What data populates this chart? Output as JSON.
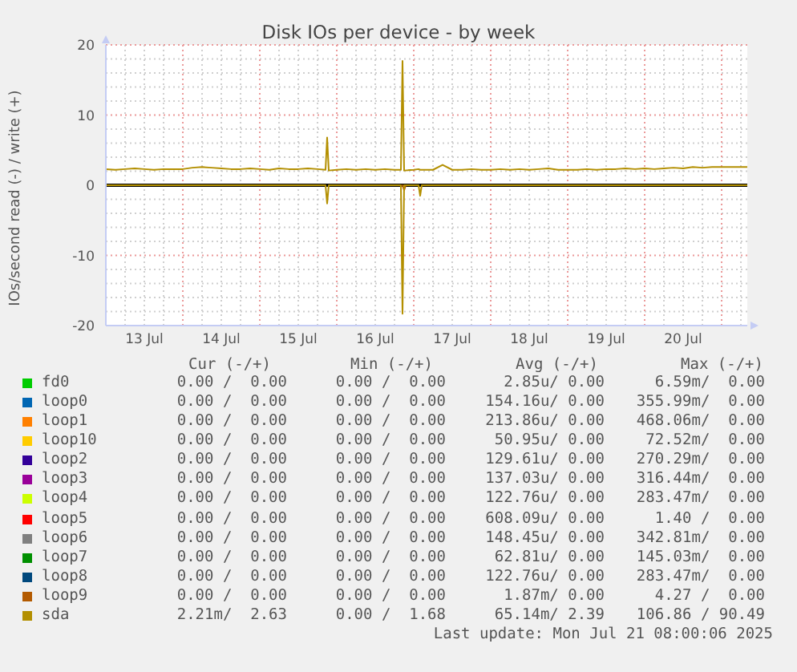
{
  "chart_data": {
    "type": "line",
    "title": "Disk IOs per device - by week",
    "ylabel": "IOs/second read (-) / write (+)",
    "x": [
      "2025-07-13T00:00",
      "2025-07-13T03:00",
      "2025-07-13T06:00",
      "2025-07-13T09:00",
      "2025-07-13T12:00",
      "2025-07-13T15:00",
      "2025-07-13T18:00",
      "2025-07-13T21:00",
      "2025-07-14T00:00",
      "2025-07-14T03:00",
      "2025-07-14T06:00",
      "2025-07-14T09:00",
      "2025-07-14T12:00",
      "2025-07-14T15:00",
      "2025-07-14T18:00",
      "2025-07-14T21:00",
      "2025-07-15T00:00",
      "2025-07-15T03:00",
      "2025-07-15T06:00",
      "2025-07-15T09:00",
      "2025-07-15T12:00",
      "2025-07-15T15:00",
      "2025-07-15T18:00",
      "2025-07-15T20:30",
      "2025-07-15T21:00",
      "2025-07-15T21:30",
      "2025-07-16T00:00",
      "2025-07-16T03:00",
      "2025-07-16T06:00",
      "2025-07-16T09:00",
      "2025-07-16T12:00",
      "2025-07-16T15:00",
      "2025-07-16T18:00",
      "2025-07-16T20:00",
      "2025-07-16T20:30",
      "2025-07-16T21:00",
      "2025-07-17T00:00",
      "2025-07-17T01:30",
      "2025-07-17T02:00",
      "2025-07-17T02:30",
      "2025-07-17T06:00",
      "2025-07-17T09:00",
      "2025-07-17T12:00",
      "2025-07-17T15:00",
      "2025-07-17T18:00",
      "2025-07-17T21:00",
      "2025-07-18T00:00",
      "2025-07-18T03:00",
      "2025-07-18T06:00",
      "2025-07-18T09:00",
      "2025-07-18T12:00",
      "2025-07-18T15:00",
      "2025-07-18T18:00",
      "2025-07-18T21:00",
      "2025-07-19T00:00",
      "2025-07-19T03:00",
      "2025-07-19T06:00",
      "2025-07-19T09:00",
      "2025-07-19T12:00",
      "2025-07-19T15:00",
      "2025-07-19T18:00",
      "2025-07-19T21:00",
      "2025-07-20T00:00",
      "2025-07-20T03:00",
      "2025-07-20T06:00",
      "2025-07-20T09:00",
      "2025-07-20T12:00",
      "2025-07-20T15:00",
      "2025-07-20T18:00",
      "2025-07-20T21:00",
      "2025-07-21T00:00",
      "2025-07-21T03:00",
      "2025-07-21T06:00",
      "2025-07-21T08:00"
    ],
    "series": [
      {
        "name": "fd0",
        "color": "#00cc00",
        "values": [
          null,
          null,
          null,
          null,
          null,
          null,
          null,
          null,
          null,
          null,
          null,
          null,
          null,
          null,
          null,
          null,
          null,
          null,
          null,
          null,
          null,
          null,
          null,
          null,
          null,
          null,
          null,
          null,
          null,
          null,
          null,
          null,
          null,
          null,
          null,
          null,
          null,
          null,
          null,
          null,
          null,
          null,
          null,
          null,
          null,
          null,
          null,
          null,
          null,
          null,
          null,
          null,
          null,
          null,
          null,
          null,
          null,
          null,
          null,
          null,
          null,
          null,
          null,
          null,
          null,
          null,
          null,
          null,
          null,
          null,
          null,
          null,
          null,
          null
        ]
      },
      {
        "name": "loop0",
        "color": "#0066b3",
        "values": [
          null,
          null,
          null,
          null,
          null,
          null,
          null,
          null,
          null,
          null,
          null,
          null,
          null,
          null,
          null,
          null,
          null,
          null,
          null,
          null,
          null,
          null,
          null,
          null,
          null,
          null,
          null,
          null,
          null,
          null,
          null,
          null,
          null,
          null,
          null,
          null,
          null,
          null,
          null,
          null,
          null,
          null,
          null,
          null,
          null,
          null,
          null,
          null,
          null,
          null,
          null,
          null,
          null,
          null,
          null,
          null,
          null,
          null,
          null,
          null,
          null,
          null,
          null,
          null,
          null,
          null,
          null,
          null,
          null,
          null,
          null,
          null,
          null,
          null
        ]
      },
      {
        "name": "loop1",
        "color": "#ff8000",
        "values": [
          null,
          null,
          null,
          null,
          null,
          null,
          null,
          null,
          null,
          null,
          null,
          null,
          null,
          null,
          null,
          null,
          null,
          null,
          null,
          null,
          null,
          null,
          null,
          null,
          null,
          null,
          null,
          null,
          null,
          null,
          null,
          null,
          null,
          null,
          null,
          null,
          null,
          null,
          null,
          null,
          null,
          null,
          null,
          null,
          null,
          null,
          null,
          null,
          null,
          null,
          null,
          null,
          null,
          null,
          null,
          null,
          null,
          null,
          null,
          null,
          null,
          null,
          null,
          null,
          null,
          null,
          null,
          null,
          null,
          null,
          null,
          null,
          null,
          null
        ]
      },
      {
        "name": "loop10",
        "color": "#ffcc00",
        "values": [
          null,
          null,
          null,
          null,
          null,
          null,
          null,
          null,
          null,
          null,
          null,
          null,
          null,
          null,
          null,
          null,
          null,
          null,
          null,
          null,
          null,
          null,
          null,
          null,
          null,
          null,
          null,
          null,
          null,
          null,
          null,
          null,
          null,
          null,
          null,
          null,
          null,
          null,
          null,
          null,
          null,
          null,
          null,
          null,
          null,
          null,
          null,
          null,
          null,
          null,
          null,
          null,
          null,
          null,
          null,
          null,
          null,
          null,
          null,
          null,
          null,
          null,
          null,
          null,
          null,
          null,
          null,
          null,
          null,
          null,
          null,
          null,
          null,
          null
        ]
      },
      {
        "name": "loop2",
        "color": "#330099",
        "values": [
          null,
          null,
          null,
          null,
          null,
          null,
          null,
          null,
          null,
          null,
          null,
          null,
          null,
          null,
          null,
          null,
          null,
          null,
          null,
          null,
          null,
          null,
          null,
          null,
          null,
          null,
          null,
          null,
          null,
          null,
          null,
          null,
          null,
          null,
          null,
          null,
          null,
          null,
          null,
          null,
          null,
          null,
          null,
          null,
          null,
          null,
          null,
          null,
          null,
          null,
          null,
          null,
          null,
          null,
          null,
          null,
          null,
          null,
          null,
          null,
          null,
          null,
          null,
          null,
          null,
          null,
          null,
          null,
          null,
          null,
          null,
          null,
          null,
          null
        ]
      },
      {
        "name": "loop3",
        "color": "#990099",
        "values": [
          null,
          null,
          null,
          null,
          null,
          null,
          null,
          null,
          null,
          null,
          null,
          null,
          null,
          null,
          null,
          null,
          null,
          null,
          null,
          null,
          null,
          null,
          null,
          null,
          null,
          null,
          null,
          null,
          null,
          null,
          null,
          null,
          null,
          null,
          null,
          null,
          null,
          null,
          null,
          null,
          null,
          null,
          null,
          null,
          null,
          null,
          null,
          null,
          null,
          null,
          null,
          null,
          null,
          null,
          null,
          null,
          null,
          null,
          null,
          null,
          null,
          null,
          null,
          null,
          null,
          null,
          null,
          null,
          null,
          null,
          null,
          null,
          null,
          null
        ]
      },
      {
        "name": "loop4",
        "color": "#ccff00",
        "values": [
          null,
          null,
          null,
          null,
          null,
          null,
          null,
          null,
          null,
          null,
          null,
          null,
          null,
          null,
          null,
          null,
          null,
          null,
          null,
          null,
          null,
          null,
          null,
          null,
          null,
          null,
          null,
          null,
          null,
          null,
          null,
          null,
          null,
          null,
          null,
          null,
          null,
          null,
          null,
          null,
          null,
          null,
          null,
          null,
          null,
          null,
          null,
          null,
          null,
          null,
          null,
          null,
          null,
          null,
          null,
          null,
          null,
          null,
          null,
          null,
          null,
          null,
          null,
          null,
          null,
          null,
          null,
          null,
          null,
          null,
          null,
          null,
          null,
          null
        ]
      },
      {
        "name": "loop5",
        "color": "#ff0000",
        "values": [
          null,
          null,
          null,
          null,
          null,
          null,
          null,
          null,
          null,
          null,
          null,
          null,
          null,
          null,
          null,
          null,
          null,
          null,
          null,
          null,
          null,
          null,
          null,
          null,
          null,
          null,
          null,
          null,
          null,
          null,
          null,
          null,
          null,
          null,
          null,
          null,
          null,
          null,
          null,
          null,
          null,
          null,
          null,
          null,
          null,
          null,
          null,
          null,
          null,
          null,
          null,
          null,
          null,
          null,
          null,
          null,
          null,
          null,
          null,
          null,
          null,
          null,
          null,
          null,
          null,
          null,
          null,
          null,
          null,
          null,
          null,
          null,
          null,
          null
        ]
      },
      {
        "name": "loop6",
        "color": "#808080",
        "values": [
          null,
          null,
          null,
          null,
          null,
          null,
          null,
          null,
          null,
          null,
          null,
          null,
          null,
          null,
          null,
          null,
          null,
          null,
          null,
          null,
          null,
          null,
          null,
          null,
          null,
          null,
          null,
          null,
          null,
          null,
          null,
          null,
          null,
          null,
          null,
          null,
          null,
          null,
          null,
          null,
          null,
          null,
          null,
          null,
          null,
          null,
          null,
          null,
          null,
          null,
          null,
          null,
          null,
          null,
          null,
          null,
          null,
          null,
          null,
          null,
          null,
          null,
          null,
          null,
          null,
          null,
          null,
          null,
          null,
          null,
          null,
          null,
          null,
          null
        ]
      },
      {
        "name": "loop7",
        "color": "#008f00",
        "values": [
          null,
          null,
          null,
          null,
          null,
          null,
          null,
          null,
          null,
          null,
          null,
          null,
          null,
          null,
          null,
          null,
          null,
          null,
          null,
          null,
          null,
          null,
          null,
          null,
          null,
          null,
          null,
          null,
          null,
          null,
          null,
          null,
          null,
          null,
          null,
          null,
          null,
          null,
          null,
          null,
          null,
          null,
          null,
          null,
          null,
          null,
          null,
          null,
          null,
          null,
          null,
          null,
          null,
          null,
          null,
          null,
          null,
          null,
          null,
          null,
          null,
          null,
          null,
          null,
          null,
          null,
          null,
          null,
          null,
          null,
          null,
          null,
          null,
          null
        ]
      },
      {
        "name": "loop8",
        "color": "#00487d",
        "values": [
          null,
          null,
          null,
          null,
          null,
          null,
          null,
          null,
          null,
          null,
          null,
          null,
          null,
          null,
          null,
          null,
          null,
          null,
          null,
          null,
          null,
          null,
          null,
          null,
          null,
          null,
          null,
          null,
          null,
          null,
          null,
          null,
          null,
          null,
          null,
          null,
          null,
          null,
          null,
          null,
          null,
          null,
          null,
          null,
          null,
          null,
          null,
          null,
          null,
          null,
          null,
          null,
          null,
          null,
          null,
          null,
          null,
          null,
          null,
          null,
          null,
          null,
          null,
          null,
          null,
          null,
          null,
          null,
          null,
          null,
          null,
          null,
          null,
          null
        ]
      },
      {
        "name": "loop9",
        "color": "#b35a00",
        "x": [
          "2025-07-16T20:30",
          "2025-07-16T21:00",
          "2025-07-16T21:30"
        ],
        "values": [
          0,
          -0.7,
          0
        ]
      },
      {
        "name": "sda",
        "color": "#b38f00",
        "values": [
          2.3,
          2.2,
          2.3,
          2.4,
          2.3,
          2.2,
          2.3,
          2.3,
          2.3,
          2.5,
          2.6,
          2.5,
          2.4,
          2.3,
          2.3,
          2.4,
          2.3,
          2.2,
          2.4,
          2.3,
          2.3,
          2.4,
          2.3,
          2.2,
          6.8,
          2.1,
          2.2,
          2.3,
          2.2,
          2.3,
          2.2,
          2.3,
          2.2,
          2.2,
          17.7,
          2.1,
          2.2,
          2.3,
          2.2,
          2.2,
          2.2,
          2.9,
          2.2,
          2.2,
          2.3,
          2.2,
          2.2,
          2.3,
          2.2,
          2.3,
          2.2,
          2.3,
          2.4,
          2.2,
          2.2,
          2.2,
          2.3,
          2.2,
          2.3,
          2.3,
          2.4,
          2.3,
          2.4,
          2.3,
          2.4,
          2.5,
          2.4,
          2.6,
          2.5,
          2.6,
          2.6,
          2.6,
          2.6,
          2.6
        ]
      },
      {
        "color": "#b38f00",
        "values": [
          0,
          0,
          0,
          0,
          0,
          0,
          0,
          0,
          0,
          0,
          0,
          0,
          0,
          0,
          0,
          0,
          0,
          0,
          0,
          0,
          0,
          0,
          0,
          0,
          -2.6,
          0,
          0,
          0,
          0,
          0,
          0,
          0,
          0,
          0,
          -18.3,
          0,
          0,
          0,
          -1.5,
          0,
          0,
          0,
          0,
          0,
          0,
          0,
          0,
          0,
          0,
          0,
          0,
          0,
          0,
          0,
          0,
          0,
          0,
          0,
          0,
          0,
          0,
          0,
          0,
          0,
          0,
          0,
          0,
          0,
          0,
          0,
          0,
          0,
          0,
          0
        ]
      }
    ],
    "xlim": [
      "2025-07-13T00:00",
      "2025-07-21T08:00"
    ],
    "xticks": [
      {
        "value": "2025-07-13T00:00",
        "label": null
      },
      {
        "value": "2025-07-13T06:00",
        "label": null
      },
      {
        "value": "2025-07-13T12:00",
        "label": "13 Jul"
      },
      {
        "value": "2025-07-13T18:00",
        "label": null
      },
      {
        "value": "2025-07-14T00:00",
        "label": null
      },
      {
        "value": "2025-07-14T06:00",
        "label": null
      },
      {
        "value": "2025-07-14T12:00",
        "label": "14 Jul"
      },
      {
        "value": "2025-07-14T18:00",
        "label": null
      },
      {
        "value": "2025-07-15T00:00",
        "label": null
      },
      {
        "value": "2025-07-15T06:00",
        "label": null
      },
      {
        "value": "2025-07-15T12:00",
        "label": "15 Jul"
      },
      {
        "value": "2025-07-15T18:00",
        "label": null
      },
      {
        "value": "2025-07-16T00:00",
        "label": null
      },
      {
        "value": "2025-07-16T06:00",
        "label": null
      },
      {
        "value": "2025-07-16T12:00",
        "label": "16 Jul"
      },
      {
        "value": "2025-07-16T18:00",
        "label": null
      },
      {
        "value": "2025-07-17T00:00",
        "label": null
      },
      {
        "value": "2025-07-17T06:00",
        "label": null
      },
      {
        "value": "2025-07-17T12:00",
        "label": "17 Jul"
      },
      {
        "value": "2025-07-17T18:00",
        "label": null
      },
      {
        "value": "2025-07-18T00:00",
        "label": null
      },
      {
        "value": "2025-07-18T06:00",
        "label": null
      },
      {
        "value": "2025-07-18T12:00",
        "label": "18 Jul"
      },
      {
        "value": "2025-07-18T18:00",
        "label": null
      },
      {
        "value": "2025-07-19T00:00",
        "label": null
      },
      {
        "value": "2025-07-19T06:00",
        "label": null
      },
      {
        "value": "2025-07-19T12:00",
        "label": "19 Jul"
      },
      {
        "value": "2025-07-19T18:00",
        "label": null
      },
      {
        "value": "2025-07-20T00:00",
        "label": null
      },
      {
        "value": "2025-07-20T06:00",
        "label": null
      },
      {
        "value": "2025-07-20T12:00",
        "label": "20 Jul"
      },
      {
        "value": "2025-07-20T18:00",
        "label": null
      },
      {
        "value": "2025-07-21T00:00",
        "label": null
      },
      {
        "value": "2025-07-21T06:00",
        "label": null
      }
    ],
    "ylim": [
      -20,
      20
    ],
    "yticks": [
      -20,
      {
        "value": -18,
        "label": null
      },
      {
        "value": -16,
        "label": null
      },
      {
        "value": -14,
        "label": null
      },
      {
        "value": -12,
        "label": null
      },
      -10,
      {
        "value": -8,
        "label": null
      },
      {
        "value": -6,
        "label": null
      },
      {
        "value": -4,
        "label": null
      },
      {
        "value": -2,
        "label": null
      },
      0,
      {
        "value": 2,
        "label": null
      },
      {
        "value": 4,
        "label": null
      },
      {
        "value": 6,
        "label": null
      },
      {
        "value": 8,
        "label": null
      },
      10,
      {
        "value": 12,
        "label": null
      },
      {
        "value": 14,
        "label": null
      },
      {
        "value": 16,
        "label": null
      },
      {
        "value": 18,
        "label": null
      },
      20
    ],
    "grid": true,
    "legend": "bottom",
    "ref_lines": [
      {
        "axis": "y",
        "value": 0,
        "color": "#000000"
      }
    ],
    "annotations": [
      "Cur (-/+)",
      "Min (-/+)",
      "Avg (-/+)",
      "Max (-/+)",
      "0.00 /  0.00",
      "0.00 /  0.00",
      "2.85u/ 0.00",
      "6.59m/  0.00",
      "0.00 /  0.00",
      "0.00 /  0.00",
      "154.16u/ 0.00",
      "355.99m/  0.00",
      "0.00 /  0.00",
      "0.00 /  0.00",
      "213.86u/ 0.00",
      "468.06m/  0.00",
      "0.00 /  0.00",
      "0.00 /  0.00",
      "50.95u/ 0.00",
      "72.52m/  0.00",
      "0.00 /  0.00",
      "0.00 /  0.00",
      "129.61u/ 0.00",
      "270.29m/  0.00",
      "0.00 /  0.00",
      "0.00 /  0.00",
      "137.03u/ 0.00",
      "316.44m/  0.00",
      "0.00 /  0.00",
      "0.00 /  0.00",
      "122.76u/ 0.00",
      "283.47m/  0.00",
      "0.00 /  0.00",
      "0.00 /  0.00",
      "608.09u/ 0.00",
      "1.40 /  0.00",
      "0.00 /  0.00",
      "0.00 /  0.00",
      "148.45u/ 0.00",
      "342.81m/  0.00",
      "0.00 /  0.00",
      "0.00 /  0.00",
      "62.81u/ 0.00",
      "145.03m/  0.00",
      "0.00 /  0.00",
      "0.00 /  0.00",
      "122.76u/ 0.00",
      "283.47m/  0.00",
      "0.00 /  0.00",
      "0.00 /  0.00",
      "1.87m/ 0.00",
      "4.27 /  0.00",
      "2.21m/  2.63",
      "0.00 /  1.68",
      "65.14m/ 2.39",
      "106.86 / 90.49",
      "Last update: Mon Jul 21 08:00:06 2025"
    ]
  }
}
